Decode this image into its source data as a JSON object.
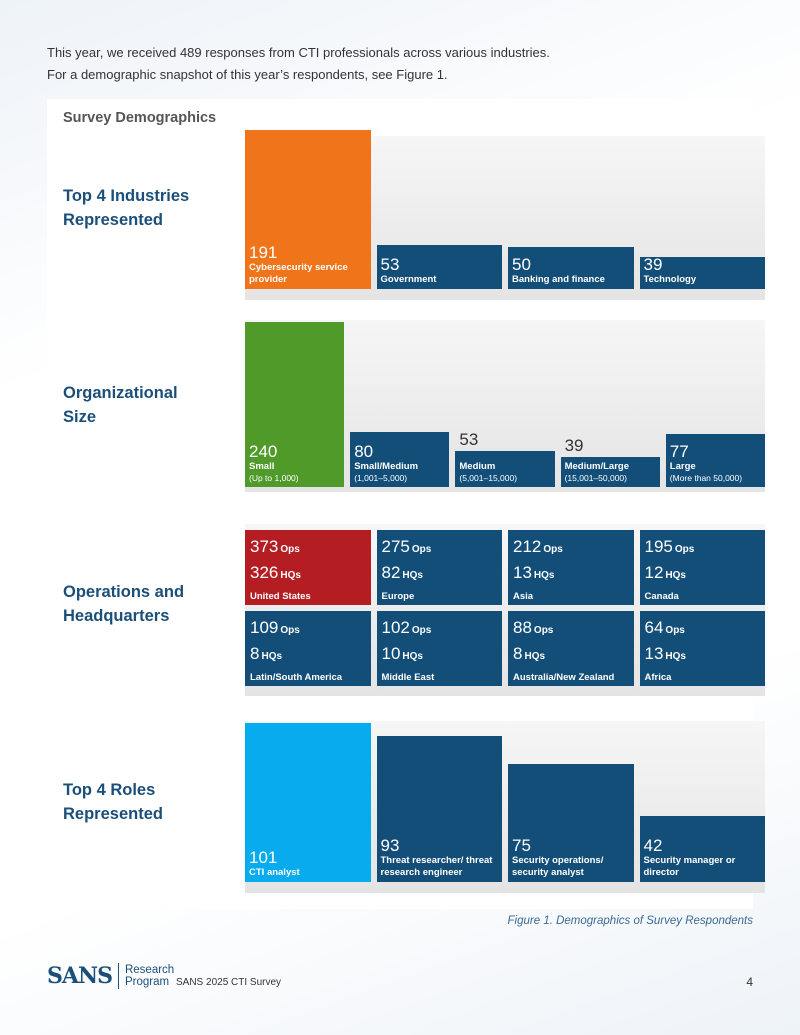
{
  "intro": {
    "line1": "This year, we received 489 responses from CTI professionals across various industries.",
    "line2": "For a demographic snapshot of this year’s respondents, see Figure 1."
  },
  "panel_title": "Survey Demographics",
  "colors": {
    "navy": "#134e79",
    "orange": "#f07419",
    "green": "#4f9a29",
    "red": "#b41d22",
    "cyan": "#08acee",
    "heading": "#1b4f7a"
  },
  "industries": {
    "label": "Top 4 Industries\nRepresented",
    "max": 191,
    "items": [
      {
        "value": "191",
        "label": "Cybersecurity service provider",
        "color": "orange"
      },
      {
        "value": "53",
        "label": "Government",
        "color": "navy"
      },
      {
        "value": "50",
        "label": "Banking and finance",
        "color": "navy"
      },
      {
        "value": "39",
        "label": "Technology",
        "color": "navy"
      }
    ]
  },
  "org_size": {
    "label": "Organizational\nSize",
    "max": 240,
    "items": [
      {
        "value": "240",
        "label": "Small",
        "sub": "(Up to 1,000)",
        "color": "green"
      },
      {
        "value": "80",
        "label": "Small/Medium",
        "sub": "(1,001–5,000)",
        "color": "navy"
      },
      {
        "value": "53",
        "label": "Medium",
        "sub": "(5,001–15,000)",
        "color": "navy"
      },
      {
        "value": "39",
        "label": "Medium/Large",
        "sub": "(15,001–50,000)",
        "color": "navy"
      },
      {
        "value": "77",
        "label": "Large",
        "sub": "(More than 50,000)",
        "color": "navy"
      }
    ]
  },
  "operations": {
    "label": "Operations and\nHeadquarters",
    "ops_unit": "Ops",
    "hq_unit": "HQs",
    "items": [
      {
        "ops": "373",
        "hqs": "326",
        "region": "United States",
        "color": "red"
      },
      {
        "ops": "275",
        "hqs": "82",
        "region": "Europe",
        "color": "navy"
      },
      {
        "ops": "212",
        "hqs": "13",
        "region": "Asia",
        "color": "navy"
      },
      {
        "ops": "195",
        "hqs": "12",
        "region": "Canada",
        "color": "navy"
      },
      {
        "ops": "109",
        "hqs": "8",
        "region": "Latin/South America",
        "color": "navy"
      },
      {
        "ops": "102",
        "hqs": "10",
        "region": "Middle East",
        "color": "navy"
      },
      {
        "ops": "88",
        "hqs": "8",
        "region": "Australia/New Zealand",
        "color": "navy"
      },
      {
        "ops": "64",
        "hqs": "13",
        "region": "Africa",
        "color": "navy"
      }
    ]
  },
  "roles": {
    "label": "Top 4 Roles\nRepresented",
    "max": 101,
    "items": [
      {
        "value": "101",
        "label": "CTI analyst",
        "color": "cyan"
      },
      {
        "value": "93",
        "label": "Threat researcher/ threat research engineer",
        "color": "navy"
      },
      {
        "value": "75",
        "label": "Security operations/ security analyst",
        "color": "navy"
      },
      {
        "value": "42",
        "label": "Security manager or director",
        "color": "navy"
      }
    ]
  },
  "caption": "Figure 1. Demographics of Survey Respondents",
  "footer": {
    "logo": "SANS",
    "logo_sub": "Research\nProgram",
    "survey": "SANS 2025 CTI Survey",
    "page": "4"
  }
}
